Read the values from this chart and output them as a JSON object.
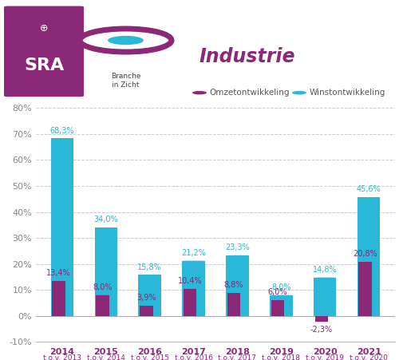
{
  "years_top": [
    "2014",
    "2015",
    "2016",
    "2017",
    "2018",
    "2019",
    "2020",
    "2021"
  ],
  "years_bot": [
    "t.o.v. 2013",
    "t.o.v. 2014",
    "t.o.v. 2015",
    "t.o.v. 2016",
    "t.o.v. 2017",
    "t.o.v. 2018",
    "t.o.v. 2019",
    "t.o.v. 2020"
  ],
  "omzet": [
    13.4,
    8.0,
    3.9,
    10.4,
    8.8,
    6.0,
    -2.3,
    20.8
  ],
  "winst": [
    68.3,
    34.0,
    15.8,
    21.2,
    23.3,
    8.0,
    14.8,
    45.6
  ],
  "omzet_color": "#8B2878",
  "winst_color": "#29B8D8",
  "background_color": "#ffffff",
  "grid_color": "#cccccc",
  "ylim_min": -10,
  "ylim_max": 80,
  "yticks": [
    -10,
    0,
    10,
    20,
    30,
    40,
    50,
    60,
    70,
    80
  ],
  "legend_omzet": "Omzetontwikkeling",
  "legend_winst": "Winstontwikkeling",
  "title_color": "#8B2878",
  "axis_year_color": "#8B2878",
  "axis_sub_color": "#8B2878",
  "tick_label_color": "#888888",
  "winst_label_color": "#29B8D8",
  "omzet_label_color": "#8B2878",
  "sra_bg": "#8B2878",
  "biz_circle_color": "#8B2878",
  "biz_inner_color": "#29B8D8"
}
